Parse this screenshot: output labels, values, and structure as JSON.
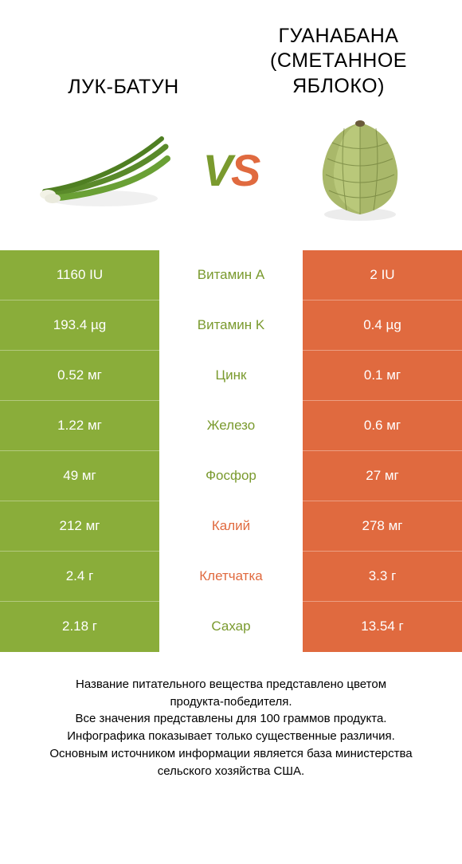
{
  "colors": {
    "left": "#8aad3a",
    "right": "#e06a3f",
    "mid_text_left": "#7a9a2e",
    "mid_text_right": "#e06a3f",
    "dark_gray": "#707070",
    "white": "#ffffff"
  },
  "header": {
    "left_title": "ЛУК-БАТУН",
    "right_title_line1": "ГУАНАБАНА",
    "right_title_line2": "(СМЕТАННОЕ",
    "right_title_line3": "ЯБЛОКО)"
  },
  "vs": {
    "v": "V",
    "s": "S"
  },
  "table": {
    "type": "comparison-table",
    "rows": [
      {
        "left": "1160 IU",
        "mid": "Витамин A",
        "right": "2 IU",
        "winner": "left"
      },
      {
        "left": "193.4 µg",
        "mid": "Витамин K",
        "right": "0.4 µg",
        "winner": "left"
      },
      {
        "left": "0.52 мг",
        "mid": "Цинк",
        "right": "0.1 мг",
        "winner": "left"
      },
      {
        "left": "1.22 мг",
        "mid": "Железо",
        "right": "0.6 мг",
        "winner": "left"
      },
      {
        "left": "49 мг",
        "mid": "Фосфор",
        "right": "27 мг",
        "winner": "left"
      },
      {
        "left": "212 мг",
        "mid": "Калий",
        "right": "278 мг",
        "winner": "right"
      },
      {
        "left": "2.4 г",
        "mid": "Клетчатка",
        "right": "3.3 г",
        "winner": "right"
      },
      {
        "left": "2.18 г",
        "mid": "Сахар",
        "right": "13.54 г",
        "winner": "left"
      }
    ]
  },
  "footnote": {
    "line1": "Название питательного вещества представлено цветом",
    "line2": "продукта-победителя.",
    "line3": "Все значения представлены для 100 граммов продукта.",
    "line4": "Инфографика показывает только существенные различия.",
    "line5": "Основным источником информации является база министерства",
    "line6": "сельского хозяйства США."
  }
}
